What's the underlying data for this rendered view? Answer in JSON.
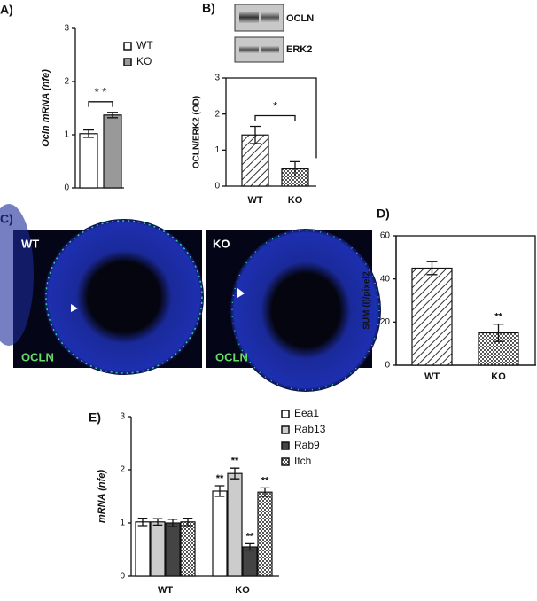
{
  "chart_data": [
    {
      "type": "bar",
      "panel_label": "A)",
      "ylabel": "Ocln mRNA (nfe)",
      "ylim": [
        0,
        3
      ],
      "yticks": [
        0,
        1,
        2,
        3
      ],
      "categories": [
        null
      ],
      "series": [
        {
          "name": "WT",
          "color": "#ffffff",
          "values": [
            1.02
          ],
          "errors": [
            0.07
          ]
        },
        {
          "name": "KO",
          "color": "#999999",
          "values": [
            1.37
          ],
          "errors": [
            0.05
          ]
        }
      ],
      "significance": "* *",
      "legend": true
    },
    {
      "type": "bar",
      "panel_label": "B)",
      "blot_labels": [
        "OCLN",
        "ERK2"
      ],
      "ylabel": "OCLN/ERK2 (OD)",
      "ylim": [
        0,
        3
      ],
      "yticks": [
        0,
        1,
        2,
        3
      ],
      "categories": [
        "WT",
        "KO"
      ],
      "values": [
        1.42,
        0.48
      ],
      "errors": [
        0.24,
        0.2
      ],
      "patterns": [
        "hatch",
        "checker"
      ],
      "significance": "*"
    },
    {
      "type": "bar",
      "panel_label": "D)",
      "ylabel": "SUM (I)/pixel2",
      "ylim": [
        0,
        60
      ],
      "yticks": [
        0,
        20,
        40,
        60
      ],
      "categories": [
        "WT",
        "KO"
      ],
      "values": [
        45,
        15
      ],
      "errors": [
        3,
        4
      ],
      "patterns": [
        "hatch",
        "checker"
      ],
      "value_annotations": [
        null,
        "**"
      ]
    },
    {
      "type": "bar",
      "panel_label": "E)",
      "ylabel": "mRNA (nfe)",
      "ylim": [
        0,
        3
      ],
      "yticks": [
        0,
        1,
        2,
        3
      ],
      "categories": [
        "WT",
        "KO"
      ],
      "series": [
        {
          "name": "Eea1",
          "color": "#ffffff",
          "values": [
            1.02,
            1.6
          ],
          "errors": [
            0.07,
            0.1
          ],
          "value_annotations": [
            null,
            "**"
          ]
        },
        {
          "name": "Rab13",
          "color": "#cccccc",
          "values": [
            1.02,
            1.93
          ],
          "errors": [
            0.06,
            0.1
          ],
          "value_annotations": [
            null,
            "**"
          ]
        },
        {
          "name": "Rab9",
          "color": "#444444",
          "values": [
            1.0,
            0.55
          ],
          "errors": [
            0.07,
            0.06
          ],
          "value_annotations": [
            null,
            "**"
          ]
        },
        {
          "name": "Itch",
          "color": "#ffffff",
          "pattern": "checker",
          "values": [
            1.02,
            1.58
          ],
          "errors": [
            0.07,
            0.08
          ],
          "value_annotations": [
            null,
            "**"
          ]
        }
      ],
      "legend": true
    }
  ],
  "figure_c": {
    "panel_label": "C)",
    "images": [
      {
        "genotype": "WT",
        "stain": "OCLN"
      },
      {
        "genotype": "KO",
        "stain": "OCLN"
      }
    ]
  }
}
